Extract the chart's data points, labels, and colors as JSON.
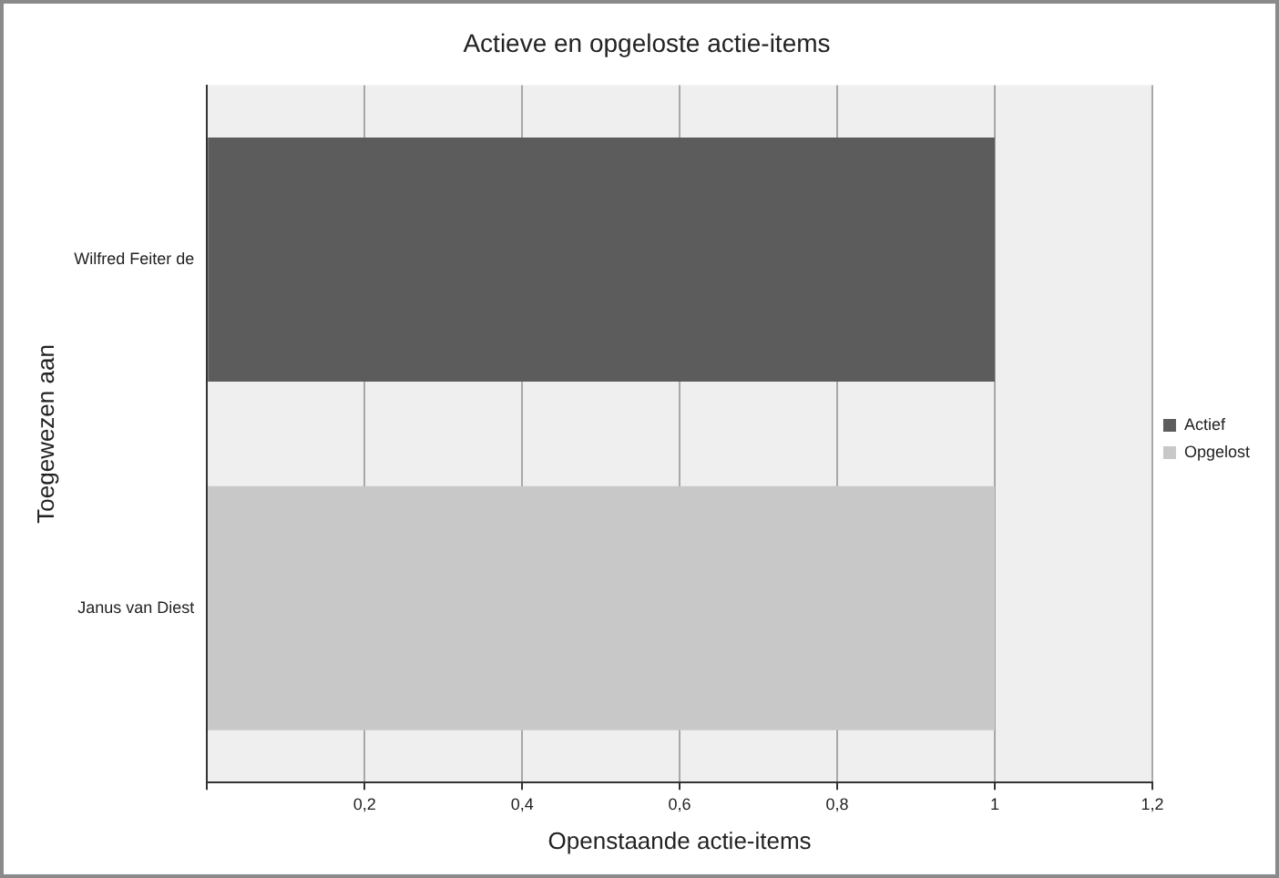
{
  "chart_data": {
    "type": "bar",
    "orientation": "horizontal",
    "stacked": true,
    "title": "Actieve en opgeloste actie-items",
    "xlabel": "Openstaande actie-items",
    "ylabel": "Toegewezen aan",
    "categories": [
      "Wilfred Feiter de",
      "Janus van Diest"
    ],
    "series": [
      {
        "name": "Actief",
        "color": "#5c5c5c",
        "values": [
          1,
          null
        ]
      },
      {
        "name": "Opgelost",
        "color": "#c8c8c8",
        "values": [
          null,
          1
        ]
      }
    ],
    "xlim": [
      0,
      1.2
    ],
    "xticks": [
      {
        "value": 0,
        "label": null
      },
      {
        "value": 0.2,
        "label": "0,2"
      },
      {
        "value": 0.4,
        "label": "0,4"
      },
      {
        "value": 0.6,
        "label": "0,6"
      },
      {
        "value": 0.8,
        "label": "0,8"
      },
      {
        "value": 1,
        "label": "1"
      },
      {
        "value": 1.2,
        "label": "1,2"
      }
    ],
    "grid": "x",
    "legend": "right"
  }
}
